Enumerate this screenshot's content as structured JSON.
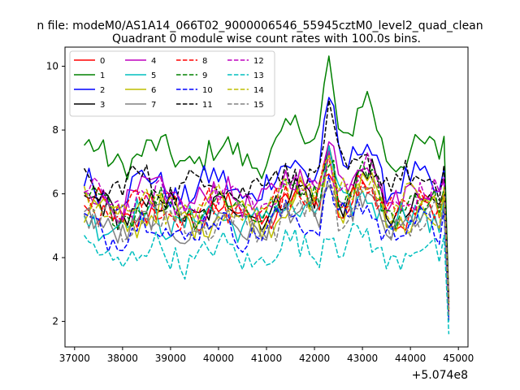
{
  "chart_data": {
    "type": "line",
    "suptitle": "n file: modeM0/AS1A14_066T02_9000006546_55945cztM0_level2_quad_clean",
    "title": "Quadrant 0 module wise count rates with 100.0s bins.",
    "xlabel": "",
    "ylabel": "",
    "x_offset_label": "+5.074e8",
    "x_start": 37200,
    "x_step": 100,
    "xlim": [
      36800,
      45200
    ],
    "ylim": [
      1.2,
      10.6
    ],
    "xticks": [
      37000,
      38000,
      39000,
      40000,
      41000,
      42000,
      43000,
      44000,
      45000
    ],
    "xtick_labels": [
      "37000",
      "38000",
      "39000",
      "40000",
      "41000",
      "42000",
      "43000",
      "44000",
      "45000"
    ],
    "yticks": [
      2,
      4,
      6,
      8,
      10
    ],
    "ytick_labels": [
      "2",
      "4",
      "6",
      "8",
      "10"
    ],
    "legend_position": "top-left",
    "series": [
      {
        "name": "0",
        "color": "#ff0000",
        "dash": "solid",
        "base": 5.4,
        "amp": 0.35,
        "peak": 1.5,
        "ph": 0.3,
        "end": 2.2
      },
      {
        "name": "1",
        "color": "#008000",
        "dash": "solid",
        "base": 7.2,
        "amp": 0.35,
        "peak": 3.0,
        "ph": 1.1,
        "end": 2.6
      },
      {
        "name": "2",
        "color": "#0000ff",
        "dash": "solid",
        "base": 6.2,
        "amp": 0.4,
        "peak": 2.8,
        "ph": 2.0,
        "end": 2.3
      },
      {
        "name": "3",
        "color": "#000000",
        "dash": "solid",
        "base": 5.5,
        "amp": 0.3,
        "peak": 2.0,
        "ph": 0.7,
        "end": 2.4
      },
      {
        "name": "4",
        "color": "#bf00bf",
        "dash": "solid",
        "base": 5.9,
        "amp": 0.35,
        "peak": 2.1,
        "ph": 1.6,
        "end": 2.5
      },
      {
        "name": "5",
        "color": "#00bfbf",
        "dash": "solid",
        "base": 5.2,
        "amp": 0.3,
        "peak": 1.7,
        "ph": 2.7,
        "end": 2.0
      },
      {
        "name": "6",
        "color": "#bfbf00",
        "dash": "solid",
        "base": 5.3,
        "amp": 0.35,
        "peak": 1.9,
        "ph": 0.2,
        "end": 2.3
      },
      {
        "name": "7",
        "color": "#808080",
        "dash": "solid",
        "base": 5.0,
        "amp": 0.3,
        "peak": 1.4,
        "ph": 1.3,
        "end": 2.2
      },
      {
        "name": "8",
        "color": "#ff0000",
        "dash": "dashed",
        "base": 5.5,
        "amp": 0.3,
        "peak": 1.5,
        "ph": 2.4,
        "end": 2.3
      },
      {
        "name": "9",
        "color": "#008000",
        "dash": "dashed",
        "base": 5.6,
        "amp": 0.3,
        "peak": 1.8,
        "ph": 0.9,
        "end": 2.4
      },
      {
        "name": "10",
        "color": "#0000ff",
        "dash": "dashed",
        "base": 4.9,
        "amp": 0.35,
        "peak": 1.3,
        "ph": 1.9,
        "end": 2.0
      },
      {
        "name": "11",
        "color": "#000000",
        "dash": "dashed",
        "base": 6.3,
        "amp": 0.35,
        "peak": 1.8,
        "ph": 2.9,
        "end": 2.6
      },
      {
        "name": "12",
        "color": "#bf00bf",
        "dash": "dashed",
        "base": 5.8,
        "amp": 0.3,
        "peak": 1.6,
        "ph": 0.5,
        "end": 2.4
      },
      {
        "name": "13",
        "color": "#00bfbf",
        "dash": "dashed",
        "base": 4.1,
        "amp": 0.35,
        "peak": 1.0,
        "ph": 1.4,
        "end": 1.6
      },
      {
        "name": "14",
        "color": "#bfbf00",
        "dash": "dashed",
        "base": 5.6,
        "amp": 0.35,
        "peak": 1.6,
        "ph": 2.2,
        "end": 2.3
      },
      {
        "name": "15",
        "color": "#808080",
        "dash": "dashed",
        "base": 5.1,
        "amp": 0.3,
        "peak": 1.2,
        "ph": 0.1,
        "end": 2.1
      }
    ]
  }
}
